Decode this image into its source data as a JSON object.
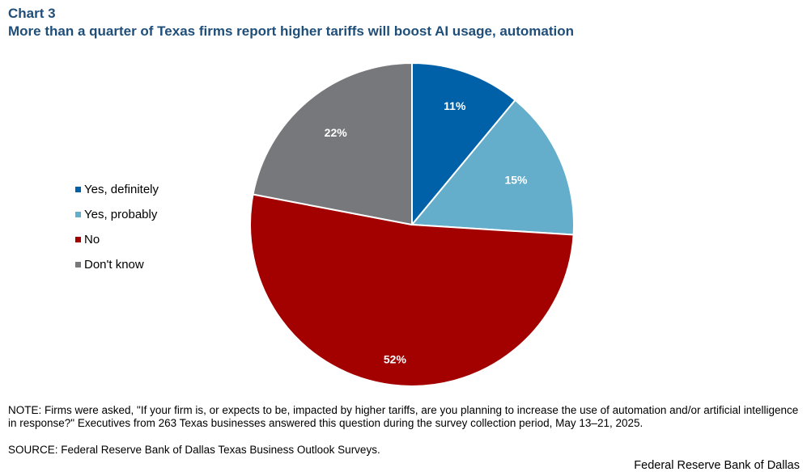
{
  "chart_number": "Chart 3",
  "colors": {
    "title": "#1f4e79",
    "yes_definitely": "#0061a8",
    "yes_probably": "#64aecc",
    "no": "#a30000",
    "dont_know": "#77787b"
  },
  "chart_data": {
    "type": "pie",
    "title": "More than a quarter of Texas firms report higher tariffs will boost AI usage, automation",
    "slices": [
      {
        "label": "Yes, definitely",
        "value": 11,
        "value_label": "11%",
        "color": "#0061a8"
      },
      {
        "label": "Yes, probably",
        "value": 15,
        "value_label": "15%",
        "color": "#64aecc"
      },
      {
        "label": "No",
        "value": 52,
        "value_label": "52%",
        "color": "#a30000"
      },
      {
        "label": "Don't know",
        "value": 22,
        "value_label": "22%",
        "color": "#77787b"
      }
    ],
    "legend_position": "left",
    "start_angle": "12 o'clock",
    "direction": "clockwise"
  },
  "note": "NOTE: Firms were asked, \"If your firm is, or expects to be, impacted by higher tariffs, are you planning to increase the use of automation and/or artificial intelligence in response?\" Executives from 263 Texas businesses answered this question during the survey collection period, May 13–21, 2025.",
  "source": "SOURCE: Federal Reserve Bank of Dallas Texas Business Outlook Surveys.",
  "credit": "Federal Reserve Bank of Dallas"
}
